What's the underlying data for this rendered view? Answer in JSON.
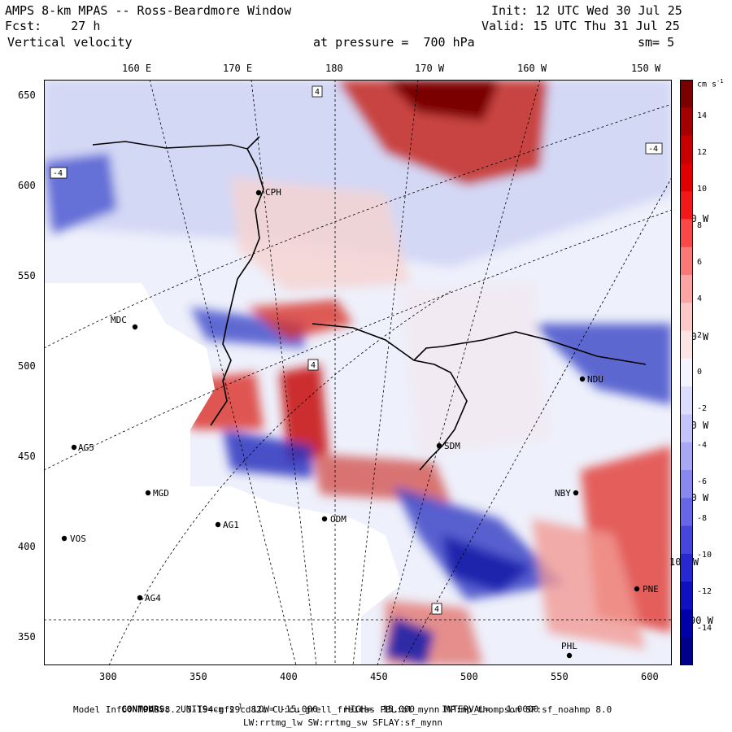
{
  "header": {
    "line1_left": "AMPS 8-km MPAS -- Ross-Beardmore Window",
    "line2_left": "Fcst:    27 h",
    "line3_left": " Vertical velocity",
    "line1_right": "Init: 12 UTC Wed 30 Jul 25",
    "line2_right": "Valid: 15 UTC Thu 31 Jul 25",
    "line3_center": "at pressure =  700 hPa",
    "line3_right": "sm= 5"
  },
  "map": {
    "lon_labels_top": [
      "160 E",
      "170 E",
      "180",
      "170 W",
      "160 W",
      "150 W"
    ],
    "y_ticks": [
      "650",
      "600",
      "550",
      "500",
      "450",
      "400",
      "350"
    ],
    "x_ticks": [
      "300",
      "350",
      "400",
      "450",
      "500",
      "550",
      "600"
    ],
    "right_lon_labels": [
      "140 W",
      "130 W",
      "120 W",
      "110 W",
      "100 W",
      "90 W"
    ],
    "stations": [
      {
        "name": "CPH"
      },
      {
        "name": "MDC"
      },
      {
        "name": "AG5"
      },
      {
        "name": "MGD"
      },
      {
        "name": "AG1"
      },
      {
        "name": "VOS"
      },
      {
        "name": "AG4"
      },
      {
        "name": "SDM"
      },
      {
        "name": "ODM"
      },
      {
        "name": "NDU"
      },
      {
        "name": "PNE"
      },
      {
        "name": "PHL"
      },
      {
        "name": "NBY"
      }
    ],
    "contour_labels": [
      "4",
      "-4",
      "4",
      "-4",
      "4"
    ]
  },
  "colorbar": {
    "unit": "cm s",
    "unit_exp": "-1",
    "ticks": [
      "14",
      "12",
      "10",
      "8",
      "6",
      "4",
      "2",
      "0",
      "-2",
      "-4",
      "-6",
      "-8",
      "-10",
      "-12",
      "-14"
    ],
    "colors": [
      "#7a0000",
      "#a30000",
      "#c80000",
      "#e00000",
      "#f01818",
      "#f84848",
      "#fb7878",
      "#fca4a4",
      "#fdc8c8",
      "#fde4e4",
      "#f4f4ff",
      "#dcdcff",
      "#c4c4fb",
      "#a8a8f5",
      "#8888ee",
      "#6666e6",
      "#4646dc",
      "#2828d0",
      "#1010c0",
      "#0000a8",
      "#00008a"
    ]
  },
  "footer": {
    "contours_label": "CONTOURS:",
    "units_label": "UNITS=cm s",
    "units_exp": "-1",
    "low": "LOW= -15.000",
    "high": "HIGH=  15.000",
    "interval": "INTERVAL=   1.0000",
    "model_line1": "Model Info: MPASv8.2.3-194-gf29cd82c CU:cu_grell_freitas PBL:bl_mynn MP:mp_thompson SF:sf_noahmp 8.0",
    "model_line2": "LW:rrtmg_lw SW:rrtmg_sw SFLAY:sf_mynn"
  }
}
